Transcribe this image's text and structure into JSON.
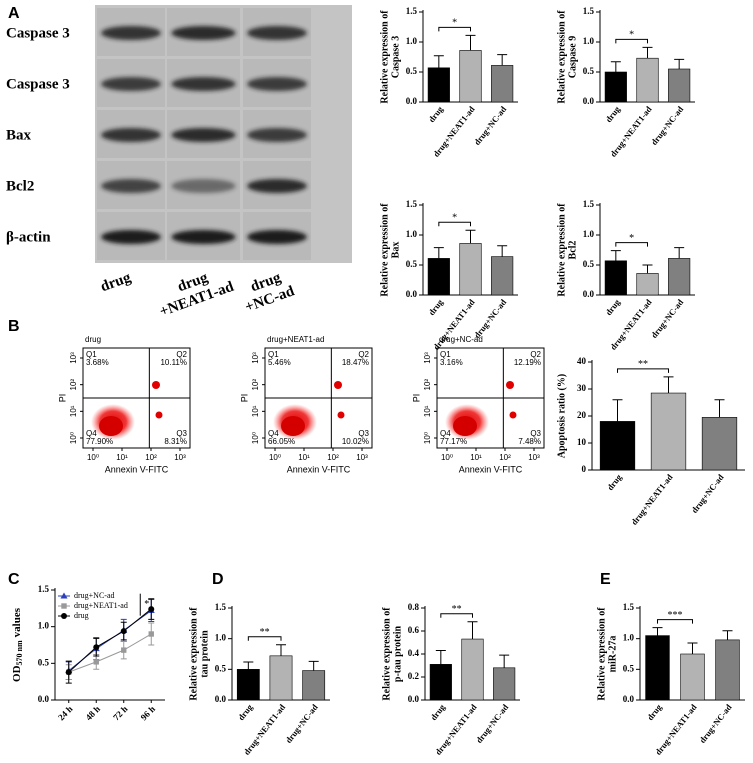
{
  "panels": [
    "A",
    "B",
    "C",
    "D",
    "E"
  ],
  "blot": {
    "rows": [
      "Caspase 3",
      "Caspase 3",
      "Bax",
      "Bcl2",
      "β-actin"
    ],
    "lanes": [
      [
        "drug"
      ],
      [
        "drug",
        "+NEAT1-ad"
      ],
      [
        "drug",
        "+NC-ad"
      ]
    ]
  },
  "flow": {
    "x_label": "Annexin V-FITC",
    "y_label": "PI",
    "xticks": [
      "10⁰",
      "10¹",
      "10²",
      "10³"
    ],
    "yticks": [
      "10⁰",
      "10¹",
      "10²",
      "10³"
    ],
    "plots": [
      {
        "title": "drug",
        "quadrants": [
          {
            "name": "Q1",
            "value": "3.68%"
          },
          {
            "name": "Q2",
            "value": "10.11%"
          },
          {
            "name": "Q3",
            "value": "8.31%"
          },
          {
            "name": "Q4",
            "value": "77.90%"
          }
        ]
      },
      {
        "title": "drug+NEAT1-ad",
        "quadrants": [
          {
            "name": "Q1",
            "value": "5.46%"
          },
          {
            "name": "Q2",
            "value": "18.47%"
          },
          {
            "name": "Q3",
            "value": "10.02%"
          },
          {
            "name": "Q4",
            "value": "66.05%"
          }
        ]
      },
      {
        "title": "drug+NC-ad",
        "quadrants": [
          {
            "name": "Q1",
            "value": "3.16%"
          },
          {
            "name": "Q2",
            "value": "12.19%"
          },
          {
            "name": "Q3",
            "value": "7.48%"
          },
          {
            "name": "Q4",
            "value": "77.17%"
          }
        ]
      }
    ]
  },
  "chart_data": [
    {
      "type": "bar",
      "y_label": [
        "Relative expression of",
        "Caspase 3"
      ],
      "categories": [
        "drug",
        "drug+NEAT1-ad",
        "drug+NC-ad"
      ],
      "values": [
        0.57,
        0.86,
        0.61
      ],
      "errors": [
        0.2,
        0.25,
        0.18
      ],
      "colors": [
        "#000000",
        "#b3b3b3",
        "#808080"
      ],
      "ylim": [
        0,
        1.5
      ],
      "yticks": [
        {
          "value": 0,
          "label": "0.0"
        },
        {
          "value": 0.5,
          "label": "0.5"
        },
        {
          "value": 1,
          "label": "1.0"
        },
        {
          "value": 1.5,
          "label": "1.5"
        }
      ],
      "significance": {
        "label": "*",
        "between": [
          0,
          1
        ]
      }
    },
    {
      "type": "bar",
      "y_label": [
        "Relative expression of",
        "Caspase 9"
      ],
      "categories": [
        "drug",
        "drug+NEAT1-ad",
        "drug+NC-ad"
      ],
      "values": [
        0.5,
        0.73,
        0.55
      ],
      "errors": [
        0.17,
        0.18,
        0.16
      ],
      "colors": [
        "#000000",
        "#b3b3b3",
        "#808080"
      ],
      "ylim": [
        0,
        1.5
      ],
      "yticks": [
        {
          "value": 0,
          "label": "0.0"
        },
        {
          "value": 0.5,
          "label": "0.5"
        },
        {
          "value": 1,
          "label": "1.0"
        },
        {
          "value": 1.5,
          "label": "1.5"
        }
      ],
      "significance": {
        "label": "*",
        "between": [
          0,
          1
        ]
      }
    },
    {
      "type": "bar",
      "y_label": [
        "Relative expression of",
        "Bax"
      ],
      "categories": [
        "drug",
        "drug+NEAT1-ad",
        "drug+NC-ad"
      ],
      "values": [
        0.61,
        0.86,
        0.64
      ],
      "errors": [
        0.18,
        0.22,
        0.18
      ],
      "colors": [
        "#000000",
        "#b3b3b3",
        "#808080"
      ],
      "ylim": [
        0,
        1.5
      ],
      "yticks": [
        {
          "value": 0,
          "label": "0.0"
        },
        {
          "value": 0.5,
          "label": "0.5"
        },
        {
          "value": 1,
          "label": "1.0"
        },
        {
          "value": 1.5,
          "label": "1.5"
        }
      ],
      "significance": {
        "label": "*",
        "between": [
          0,
          1
        ]
      }
    },
    {
      "type": "bar",
      "y_label": [
        "Relative expression of",
        "Bcl2"
      ],
      "categories": [
        "drug",
        "drug+NEAT1-ad",
        "drug+NC-ad"
      ],
      "values": [
        0.57,
        0.36,
        0.61
      ],
      "errors": [
        0.17,
        0.14,
        0.18
      ],
      "colors": [
        "#000000",
        "#b3b3b3",
        "#808080"
      ],
      "ylim": [
        0,
        1.5
      ],
      "yticks": [
        {
          "value": 0,
          "label": "0.0"
        },
        {
          "value": 0.5,
          "label": "0.5"
        },
        {
          "value": 1,
          "label": "1.0"
        },
        {
          "value": 1.5,
          "label": "1.5"
        }
      ],
      "significance": {
        "label": "*",
        "between": [
          0,
          1
        ]
      }
    },
    {
      "type": "bar",
      "y_label": [
        "Apoptosis ratio (%)"
      ],
      "categories": [
        "drug",
        "drug+NEAT1-ad",
        "drug+NC-ad"
      ],
      "values": [
        18,
        28.5,
        19.5
      ],
      "errors": [
        8,
        6,
        6.5
      ],
      "colors": [
        "#000000",
        "#b3b3b3",
        "#808080"
      ],
      "ylim": [
        0,
        40
      ],
      "yticks": [
        0,
        10,
        20,
        30,
        40
      ],
      "significance": {
        "label": "**",
        "between": [
          0,
          1
        ]
      }
    },
    {
      "type": "line",
      "y_label": "OD",
      "y_label_sub": "570 nm",
      "y_label_tail": "values",
      "categories": [
        "24 h",
        "48 h",
        "72 h",
        "96 h"
      ],
      "series": [
        {
          "name": "drug+NC-ad",
          "color": "#2b3fbf",
          "marker": "triangle",
          "values": [
            0.4,
            0.7,
            0.95,
            1.22
          ],
          "errors": [
            0.12,
            0.15,
            0.15,
            0.15
          ]
        },
        {
          "name": "drug+NEAT1-ad",
          "color": "#999999",
          "marker": "square",
          "values": [
            0.38,
            0.52,
            0.68,
            0.9
          ],
          "errors": [
            0.1,
            0.1,
            0.12,
            0.15
          ]
        },
        {
          "name": "drug",
          "color": "#000000",
          "marker": "circle",
          "values": [
            0.38,
            0.72,
            0.94,
            1.24
          ],
          "errors": [
            0.15,
            0.12,
            0.12,
            0.14
          ]
        }
      ],
      "ylim": [
        0,
        1.5
      ],
      "yticks": [
        {
          "value": 0,
          "label": "0.0"
        },
        {
          "value": 0.5,
          "label": "0.5"
        },
        {
          "value": 1,
          "label": "1.0"
        },
        {
          "value": 1.5,
          "label": "1.5"
        }
      ],
      "annotation": "*"
    },
    {
      "type": "bar",
      "y_label": [
        "Relative expression of",
        "tau protein"
      ],
      "categories": [
        "drug",
        "drug+NEAT1-ad",
        "drug+NC-ad"
      ],
      "values": [
        0.5,
        0.72,
        0.48
      ],
      "errors": [
        0.12,
        0.18,
        0.15
      ],
      "colors": [
        "#000000",
        "#b3b3b3",
        "#808080"
      ],
      "ylim": [
        0,
        1.5
      ],
      "yticks": [
        {
          "value": 0,
          "label": "0.0"
        },
        {
          "value": 0.5,
          "label": "0.5"
        },
        {
          "value": 1,
          "label": "1.0"
        },
        {
          "value": 1.5,
          "label": "1.5"
        }
      ],
      "significance": {
        "label": "**",
        "between": [
          0,
          1
        ]
      }
    },
    {
      "type": "bar",
      "y_label": [
        "Relative expression of",
        "p-tau protein"
      ],
      "categories": [
        "drug",
        "drug+NEAT1-ad",
        "drug+NC-ad"
      ],
      "values": [
        0.31,
        0.53,
        0.28
      ],
      "errors": [
        0.12,
        0.15,
        0.11
      ],
      "colors": [
        "#000000",
        "#b3b3b3",
        "#808080"
      ],
      "ylim": [
        0,
        0.8
      ],
      "yticks": [
        {
          "value": 0,
          "label": "0.0"
        },
        {
          "value": 0.2,
          "label": "0.2"
        },
        {
          "value": 0.4,
          "label": "0.4"
        },
        {
          "value": 0.6,
          "label": "0.6"
        },
        {
          "value": 0.8,
          "label": "0.8"
        }
      ],
      "significance": {
        "label": "**",
        "between": [
          0,
          1
        ]
      }
    },
    {
      "type": "bar",
      "y_label": [
        "Relative expression of",
        "miR-27a"
      ],
      "categories": [
        "drug",
        "drug+NEAT1-ad",
        "drug+NC-ad"
      ],
      "values": [
        1.05,
        0.75,
        0.98
      ],
      "errors": [
        0.13,
        0.18,
        0.15
      ],
      "colors": [
        "#000000",
        "#b3b3b3",
        "#808080"
      ],
      "ylim": [
        0,
        1.5
      ],
      "yticks": [
        {
          "value": 0,
          "label": "0.0"
        },
        {
          "value": 0.5,
          "label": "0.5"
        },
        {
          "value": 1,
          "label": "1.0"
        },
        {
          "value": 1.5,
          "label": "1.5"
        }
      ],
      "significance": {
        "label": "***",
        "between": [
          0,
          1
        ]
      }
    }
  ]
}
